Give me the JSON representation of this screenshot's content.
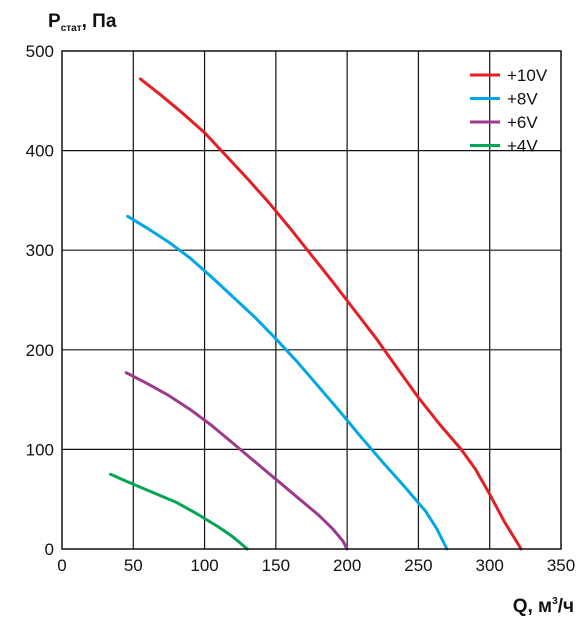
{
  "chart_data": {
    "type": "line",
    "title": "",
    "ylabel": {
      "main": "P",
      "sub": "стат",
      "rest": ", Па"
    },
    "xlabel": {
      "main": "Q, м",
      "sup": "3",
      "rest": "/ч"
    },
    "xlim": [
      0,
      350
    ],
    "ylim": [
      0,
      500
    ],
    "x_ticks": [
      0,
      50,
      100,
      150,
      200,
      250,
      300,
      350
    ],
    "y_ticks": [
      0,
      100,
      200,
      300,
      400,
      500
    ],
    "grid": true,
    "legend_position": "top-right",
    "series": [
      {
        "name": "+10V",
        "color": "#e31e24",
        "points": [
          [
            55,
            472
          ],
          [
            70,
            455
          ],
          [
            85,
            437
          ],
          [
            100,
            418
          ],
          [
            115,
            395
          ],
          [
            130,
            372
          ],
          [
            145,
            348
          ],
          [
            160,
            322
          ],
          [
            175,
            295
          ],
          [
            190,
            268
          ],
          [
            205,
            240
          ],
          [
            220,
            212
          ],
          [
            235,
            182
          ],
          [
            250,
            152
          ],
          [
            265,
            125
          ],
          [
            280,
            100
          ],
          [
            290,
            80
          ],
          [
            300,
            55
          ],
          [
            310,
            28
          ],
          [
            322,
            0
          ]
        ]
      },
      {
        "name": "+8V",
        "color": "#00a6e6",
        "points": [
          [
            46,
            334
          ],
          [
            60,
            322
          ],
          [
            75,
            308
          ],
          [
            90,
            292
          ],
          [
            105,
            273
          ],
          [
            120,
            253
          ],
          [
            135,
            233
          ],
          [
            150,
            211
          ],
          [
            165,
            188
          ],
          [
            180,
            163
          ],
          [
            195,
            138
          ],
          [
            210,
            112
          ],
          [
            225,
            87
          ],
          [
            240,
            63
          ],
          [
            255,
            38
          ],
          [
            263,
            20
          ],
          [
            270,
            0
          ]
        ]
      },
      {
        "name": "+6V",
        "color": "#9e3a8e",
        "points": [
          [
            45,
            177
          ],
          [
            60,
            166
          ],
          [
            75,
            154
          ],
          [
            90,
            140
          ],
          [
            105,
            124
          ],
          [
            120,
            106
          ],
          [
            135,
            88
          ],
          [
            150,
            70
          ],
          [
            165,
            52
          ],
          [
            180,
            34
          ],
          [
            190,
            20
          ],
          [
            197,
            8
          ],
          [
            200,
            0
          ]
        ]
      },
      {
        "name": "+4V",
        "color": "#00a651",
        "points": [
          [
            34,
            75
          ],
          [
            50,
            65
          ],
          [
            65,
            56
          ],
          [
            80,
            47
          ],
          [
            95,
            35
          ],
          [
            110,
            22
          ],
          [
            120,
            12
          ],
          [
            130,
            0
          ]
        ]
      }
    ]
  }
}
